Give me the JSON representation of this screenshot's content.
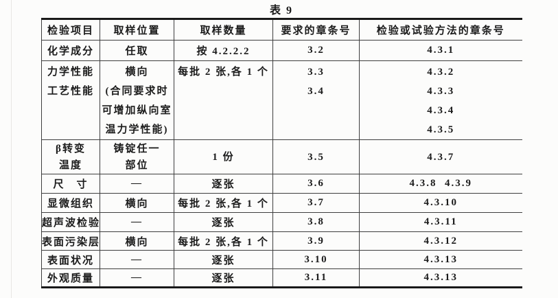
{
  "document": {
    "title": "表 9",
    "ink_color": "#1b1b1b",
    "rule_color": "#3d3d3d",
    "paper_color": "#fcfcfb"
  },
  "table": {
    "headers": [
      "检验项目",
      "取样位置",
      "取样数量",
      "要求的章条号",
      "检验或试验方法的章条号"
    ],
    "column_keys": [
      "item",
      "location",
      "quantity",
      "requirement",
      "method"
    ],
    "rows": [
      {
        "cells": {
          "item": [
            "化学成分"
          ],
          "location": [
            "任取"
          ],
          "quantity": [
            "按 4.2.2.2"
          ],
          "requirement": [
            "3.2"
          ],
          "method": [
            "4.3.1"
          ]
        }
      },
      {
        "cells": {
          "item": [
            "力学性能",
            "工艺性能"
          ],
          "location": [
            "横向",
            "(合同要求时",
            "可增加纵向室",
            "温力学性能)"
          ],
          "quantity": [
            "每批 2 张,各 1 个"
          ],
          "requirement": [
            "3.3",
            "3.4"
          ],
          "method": [
            "4.3.2",
            "4.3.3",
            "4.3.4",
            "4.3.5"
          ]
        }
      },
      {
        "cells": {
          "item": [
            "β转变",
            "温度"
          ],
          "location": [
            "铸锭任一",
            "部位"
          ],
          "quantity": [
            "1 份"
          ],
          "requirement": [
            "3.5"
          ],
          "method": [
            "4.3.7"
          ]
        }
      },
      {
        "cells": {
          "item": [
            "尺　寸"
          ],
          "location": [
            "—"
          ],
          "quantity": [
            "逐张"
          ],
          "requirement": [
            "3.6"
          ],
          "method": [
            "4.3.8  4.3.9"
          ]
        }
      },
      {
        "cells": {
          "item": [
            "显微组织"
          ],
          "location": [
            "横向"
          ],
          "quantity": [
            "每批 2 张,各 1 个"
          ],
          "requirement": [
            "3.7"
          ],
          "method": [
            "4.3.10"
          ]
        }
      },
      {
        "cells": {
          "item": [
            "超声波检验"
          ],
          "location": [
            "—"
          ],
          "quantity": [
            "逐张"
          ],
          "requirement": [
            "3.8"
          ],
          "method": [
            "4.3.11"
          ]
        }
      },
      {
        "cells": {
          "item": [
            "表面污染层"
          ],
          "location": [
            "横向"
          ],
          "quantity": [
            "每批 2 张,各 1 个"
          ],
          "requirement": [
            "3.9"
          ],
          "method": [
            "4.3.12"
          ]
        }
      },
      {
        "cells": {
          "item": [
            "表面状况"
          ],
          "location": [
            "—"
          ],
          "quantity": [
            "逐张"
          ],
          "requirement": [
            "3.10"
          ],
          "method": [
            "4.3.13"
          ]
        }
      },
      {
        "cells": {
          "item": [
            "外观质量"
          ],
          "location": [
            "—"
          ],
          "quantity": [
            "逐张"
          ],
          "requirement": [
            "3.11"
          ],
          "method": [
            "4.3.13"
          ]
        }
      }
    ]
  }
}
